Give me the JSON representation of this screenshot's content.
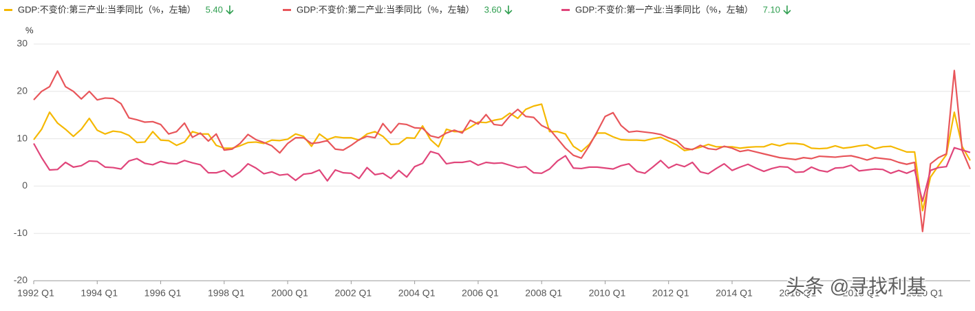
{
  "chart_data": {
    "type": "line",
    "y_unit": "%",
    "watermark": "头条 @寻找利基",
    "categories": [
      "1992 Q1",
      null,
      null,
      null,
      null,
      null,
      null,
      null,
      "1994 Q1",
      null,
      null,
      null,
      null,
      null,
      null,
      null,
      "1996 Q1",
      null,
      null,
      null,
      null,
      null,
      null,
      null,
      "1998 Q1",
      null,
      null,
      null,
      null,
      null,
      null,
      null,
      "2000 Q1",
      null,
      null,
      null,
      null,
      null,
      null,
      null,
      "2002 Q1",
      null,
      null,
      null,
      null,
      null,
      null,
      null,
      "2004 Q1",
      null,
      null,
      null,
      null,
      null,
      null,
      null,
      "2006 Q1",
      null,
      null,
      null,
      null,
      null,
      null,
      null,
      "2008 Q1",
      null,
      null,
      null,
      null,
      null,
      null,
      null,
      "2010 Q1",
      null,
      null,
      null,
      null,
      null,
      null,
      null,
      "2012 Q1",
      null,
      null,
      null,
      null,
      null,
      null,
      null,
      "2014 Q1",
      null,
      null,
      null,
      null,
      null,
      null,
      null,
      "2016 Q1",
      null,
      null,
      null,
      null,
      null,
      null,
      null,
      "2018 Q1",
      null,
      null,
      null,
      null,
      null,
      null,
      null,
      "2020 Q1",
      null,
      null,
      null,
      null,
      null,
      null
    ],
    "ylim": [
      -20,
      30
    ],
    "yticks": [
      -20,
      -10,
      0,
      10,
      20,
      30
    ],
    "grid": true,
    "series": [
      {
        "name": "GDP:不变价:第三产业:当季同比（%，左轴）",
        "color": "#f5b800",
        "latest_label": "5.40",
        "values": [
          9.8,
          12.0,
          15.6,
          13.3,
          12.0,
          10.5,
          12.0,
          14.3,
          11.8,
          11.0,
          11.6,
          11.4,
          10.7,
          9.2,
          9.3,
          11.5,
          9.7,
          9.6,
          8.6,
          9.3,
          11.5,
          11.0,
          11.0,
          8.6,
          8.0,
          8.0,
          8.5,
          9.2,
          9.3,
          9.0,
          9.7,
          9.6,
          9.9,
          11.0,
          10.5,
          8.4,
          11.0,
          9.8,
          10.4,
          10.2,
          10.2,
          9.7,
          11.0,
          11.5,
          10.5,
          8.8,
          8.9,
          10.2,
          10.1,
          12.7,
          9.8,
          8.3,
          12.0,
          11.5,
          11.5,
          12.4,
          13.5,
          13.4,
          13.9,
          14.2,
          15.4,
          14.3,
          16.2,
          16.9,
          17.3,
          11.5,
          11.5,
          11.0,
          8.4,
          7.3,
          8.8,
          11.2,
          11.2,
          10.4,
          9.8,
          9.7,
          9.7,
          9.6,
          10.0,
          10.3,
          9.5,
          8.7,
          7.5,
          7.8,
          8.2,
          8.8,
          8.3,
          8.3,
          8.3,
          8.0,
          8.2,
          8.3,
          8.3,
          8.9,
          8.5,
          9.0,
          9.0,
          8.8,
          8.0,
          7.9,
          8.0,
          8.5,
          8.0,
          8.2,
          8.5,
          8.7,
          7.9,
          8.3,
          8.4,
          7.8,
          7.2,
          7.2,
          -5.2,
          1.9,
          4.3,
          6.6,
          15.6,
          8.3,
          5.4
        ]
      },
      {
        "name": "GDP:不变价:第二产业:当季同比（%，左轴）",
        "color": "#e8555a",
        "latest_label": "3.60",
        "values": [
          18.2,
          20.0,
          21.0,
          24.3,
          21.0,
          20.0,
          18.4,
          20.0,
          18.2,
          18.6,
          18.5,
          17.4,
          14.4,
          14.0,
          13.5,
          13.6,
          13.0,
          11.0,
          11.5,
          13.3,
          10.3,
          11.2,
          9.5,
          11.0,
          7.6,
          7.8,
          9.0,
          10.9,
          9.8,
          9.2,
          8.5,
          7.0,
          9.0,
          10.2,
          10.2,
          9.0,
          9.2,
          9.6,
          7.8,
          7.6,
          8.6,
          9.8,
          10.5,
          10.2,
          13.2,
          11.2,
          13.2,
          13.0,
          12.3,
          12.2,
          10.6,
          10.2,
          11.2,
          11.8,
          11.2,
          13.9,
          13.1,
          15.1,
          13.0,
          12.8,
          14.8,
          16.2,
          14.7,
          14.5,
          12.8,
          12.0,
          10.0,
          8.0,
          6.5,
          5.9,
          8.5,
          11.5,
          14.7,
          15.5,
          12.8,
          11.4,
          11.6,
          11.4,
          11.2,
          10.9,
          10.2,
          9.6,
          8.0,
          7.7,
          8.6,
          7.9,
          7.7,
          8.4,
          8.0,
          7.3,
          7.6,
          7.2,
          6.8,
          6.4,
          6.0,
          5.8,
          5.6,
          6.0,
          5.8,
          6.3,
          6.2,
          6.1,
          6.3,
          6.4,
          6.0,
          5.5,
          6.0,
          5.8,
          5.6,
          5.0,
          4.6,
          5.0,
          -9.6,
          4.7,
          6.0,
          6.8,
          24.4,
          7.5,
          3.6
        ]
      },
      {
        "name": "GDP:不变价:第一产业:当季同比（%，左轴）",
        "color": "#e0457a",
        "latest_label": "7.10",
        "values": [
          9.0,
          6.0,
          3.4,
          3.5,
          5.0,
          4.0,
          4.3,
          5.3,
          5.2,
          4.0,
          3.9,
          3.6,
          5.3,
          5.8,
          4.8,
          4.5,
          5.2,
          4.8,
          4.7,
          5.4,
          4.9,
          4.5,
          2.8,
          2.8,
          3.3,
          1.9,
          3.0,
          4.7,
          3.8,
          2.6,
          3.0,
          2.3,
          2.5,
          1.2,
          2.5,
          2.7,
          3.4,
          1.1,
          3.4,
          2.8,
          2.7,
          1.6,
          3.9,
          2.4,
          2.7,
          1.6,
          3.3,
          1.9,
          4.1,
          4.8,
          7.3,
          6.8,
          4.7,
          5.0,
          5.0,
          5.3,
          4.4,
          5.0,
          4.8,
          4.9,
          4.4,
          3.9,
          4.1,
          2.8,
          2.7,
          3.6,
          5.3,
          6.4,
          3.8,
          3.7,
          4.0,
          4.0,
          3.8,
          3.6,
          4.3,
          4.7,
          3.1,
          2.7,
          4.0,
          5.4,
          3.8,
          4.6,
          4.1,
          5.0,
          3.0,
          2.6,
          3.7,
          4.7,
          3.3,
          4.0,
          4.6,
          3.8,
          3.1,
          3.7,
          4.1,
          4.0,
          2.9,
          3.0,
          4.0,
          3.3,
          3.0,
          3.8,
          3.9,
          4.4,
          3.2,
          3.4,
          3.6,
          3.5,
          2.7,
          3.3,
          2.7,
          3.4,
          -3.2,
          3.3,
          3.9,
          4.1,
          8.1,
          7.6,
          7.1
        ]
      }
    ]
  }
}
